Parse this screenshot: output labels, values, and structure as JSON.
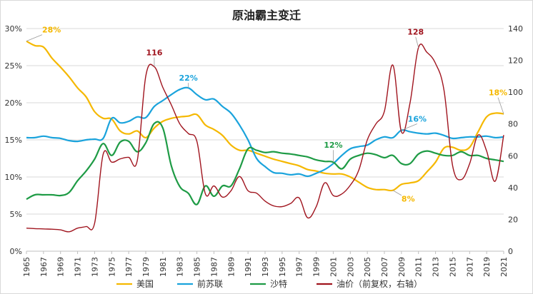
{
  "chart_data": {
    "type": "line",
    "title": "原油霸主变迁",
    "x": [
      1965,
      1966,
      1967,
      1968,
      1969,
      1970,
      1971,
      1972,
      1973,
      1974,
      1975,
      1976,
      1977,
      1978,
      1979,
      1980,
      1981,
      1982,
      1983,
      1984,
      1985,
      1986,
      1987,
      1988,
      1989,
      1990,
      1991,
      1992,
      1993,
      1994,
      1995,
      1996,
      1997,
      1998,
      1999,
      2000,
      2001,
      2002,
      2003,
      2004,
      2005,
      2006,
      2007,
      2008,
      2009,
      2010,
      2011,
      2012,
      2013,
      2014,
      2015,
      2016,
      2017,
      2018,
      2019,
      2020,
      2021
    ],
    "x_tick_labels": [
      "1965",
      "1967",
      "1969",
      "1971",
      "1973",
      "1975",
      "1977",
      "1979",
      "1981",
      "1983",
      "1985",
      "1987",
      "1989",
      "1991",
      "1993",
      "1995",
      "1997",
      "1999",
      "2001",
      "2003",
      "2005",
      "2007",
      "2009",
      "2011",
      "2013",
      "2015",
      "2017",
      "2019",
      "2021"
    ],
    "y_left": {
      "min": 0,
      "max": 30,
      "ticks": [
        "0%",
        "5%",
        "10%",
        "15%",
        "20%",
        "25%",
        "30%"
      ],
      "tick_values": [
        0,
        5,
        10,
        15,
        20,
        25,
        30
      ]
    },
    "y_right": {
      "min": 0,
      "max": 140,
      "ticks": [
        "0",
        "20",
        "40",
        "60",
        "80",
        "100",
        "120",
        "140"
      ],
      "tick_values": [
        0,
        20,
        40,
        60,
        80,
        100,
        120,
        140
      ]
    },
    "series": [
      {
        "name": "美国",
        "color": "#F5B800",
        "axis": "left",
        "values": [
          28.3,
          27.7,
          27.5,
          26.0,
          24.8,
          23.5,
          22.0,
          20.8,
          18.8,
          17.9,
          17.8,
          16.2,
          15.8,
          16.2,
          15.3,
          16.6,
          17.5,
          17.9,
          18.1,
          18.2,
          18.4,
          17.0,
          16.4,
          15.6,
          14.3,
          13.6,
          13.6,
          13.2,
          12.8,
          12.4,
          12.1,
          11.8,
          11.5,
          11.0,
          10.8,
          10.5,
          10.4,
          10.4,
          10.0,
          9.3,
          8.6,
          8.3,
          8.3,
          8.2,
          9.0,
          9.2,
          9.5,
          10.7,
          12.0,
          13.9,
          14.0,
          13.6,
          14.0,
          16.1,
          18.1,
          18.6,
          18.5
        ]
      },
      {
        "name": "前苏联",
        "color": "#1AA3DC",
        "axis": "left",
        "values": [
          15.3,
          15.3,
          15.5,
          15.3,
          15.2,
          14.9,
          14.8,
          15.0,
          15.1,
          15.2,
          17.9,
          17.3,
          17.5,
          18.1,
          18.0,
          19.5,
          20.3,
          21.1,
          21.8,
          22.0,
          21.1,
          20.4,
          20.5,
          19.5,
          18.6,
          17.0,
          15.0,
          12.5,
          11.4,
          10.6,
          10.5,
          10.3,
          10.4,
          10.1,
          10.5,
          11.0,
          11.8,
          12.9,
          13.8,
          14.1,
          14.3,
          15.0,
          15.4,
          15.3,
          16.3,
          16.1,
          15.9,
          15.8,
          15.9,
          15.6,
          15.2,
          15.3,
          15.4,
          15.4,
          15.5,
          15.3,
          15.4
        ]
      },
      {
        "name": "沙特",
        "color": "#1E9B45",
        "axis": "left",
        "values": [
          7.0,
          7.6,
          7.6,
          7.6,
          7.5,
          7.9,
          9.5,
          10.8,
          12.4,
          14.5,
          12.9,
          14.7,
          14.8,
          13.4,
          14.6,
          17.2,
          16.6,
          11.5,
          8.7,
          7.8,
          6.3,
          8.8,
          7.4,
          8.8,
          8.8,
          11.1,
          13.8,
          13.6,
          13.3,
          13.4,
          13.2,
          13.1,
          12.9,
          12.7,
          12.3,
          12.1,
          12.0,
          11.1,
          12.4,
          12.9,
          13.2,
          13.0,
          12.6,
          12.9,
          11.8,
          11.8,
          13.1,
          13.5,
          13.2,
          12.9,
          12.9,
          13.4,
          12.9,
          12.9,
          12.5,
          12.3,
          12.1
        ]
      },
      {
        "name": "油价（前复权，右轴）",
        "color": "#A0141E",
        "axis": "right",
        "values": [
          14.5,
          14.2,
          14.0,
          13.8,
          13.4,
          12.2,
          14.5,
          15.5,
          17.5,
          61.0,
          56.0,
          58.0,
          59.0,
          57.0,
          110.0,
          116.0,
          103.0,
          92.0,
          80.0,
          74.0,
          69.0,
          36.0,
          41.0,
          34.0,
          38.0,
          47.0,
          38.0,
          36.5,
          31.5,
          28.5,
          28.0,
          30.0,
          33.5,
          21.0,
          28.0,
          43.0,
          35.0,
          36.0,
          41.5,
          51.0,
          70.0,
          80.0,
          88.0,
          117.0,
          75.0,
          93.0,
          128.0,
          125.0,
          118.0,
          101.0,
          54.0,
          45.0,
          55.0,
          73.0,
          63.0,
          44.0,
          73.0
        ]
      }
    ],
    "annotations": [
      {
        "text": "28%",
        "series": "美国",
        "year": 1965
      },
      {
        "text": "116",
        "series": "油价（前复权，右轴）",
        "year": 1980
      },
      {
        "text": "22%",
        "series": "前苏联",
        "year": 1984
      },
      {
        "text": "12%",
        "series": "沙特",
        "year": 2001
      },
      {
        "text": "128",
        "series": "油价（前复权，右轴）",
        "year": 2011
      },
      {
        "text": "16%",
        "series": "前苏联",
        "year": 2009
      },
      {
        "text": "8%",
        "series": "美国",
        "year": 2008
      },
      {
        "text": "18%",
        "series": "美国",
        "year": 2021
      }
    ],
    "legend": {
      "placement": "bottom",
      "entries": [
        "美国",
        "前苏联",
        "沙特",
        "油价（前复权，右轴）"
      ]
    }
  }
}
